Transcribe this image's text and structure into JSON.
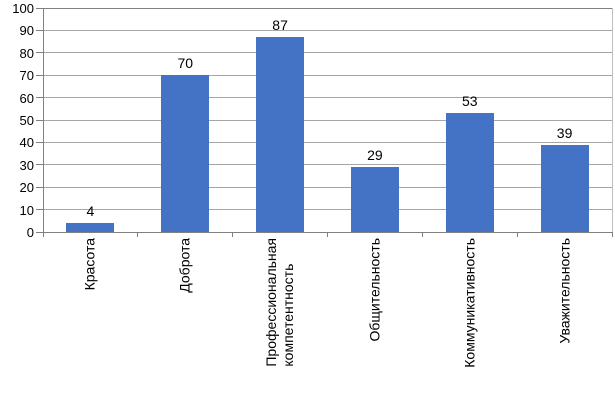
{
  "chart_data": {
    "type": "bar",
    "title": "",
    "xlabel": "",
    "ylabel": "",
    "categories": [
      "Красота",
      "Доброта",
      "Профессиональная\nкомпетентность",
      "Общительность",
      "Коммуникативность",
      "Уважительность"
    ],
    "values": [
      4,
      70,
      87,
      29,
      53,
      39
    ],
    "data_labels_shown": true,
    "ylim": [
      0,
      100
    ],
    "yticks": [
      0,
      10,
      20,
      30,
      40,
      50,
      60,
      70,
      80,
      90,
      100
    ],
    "grid": true,
    "legend": false,
    "colors": {
      "bar_fill": "#4472C4",
      "gridline": "#A6A6A6",
      "axis": "#808080",
      "plot_border": "#BFBFBF",
      "text": "#000000",
      "background": "#FFFFFF"
    }
  }
}
